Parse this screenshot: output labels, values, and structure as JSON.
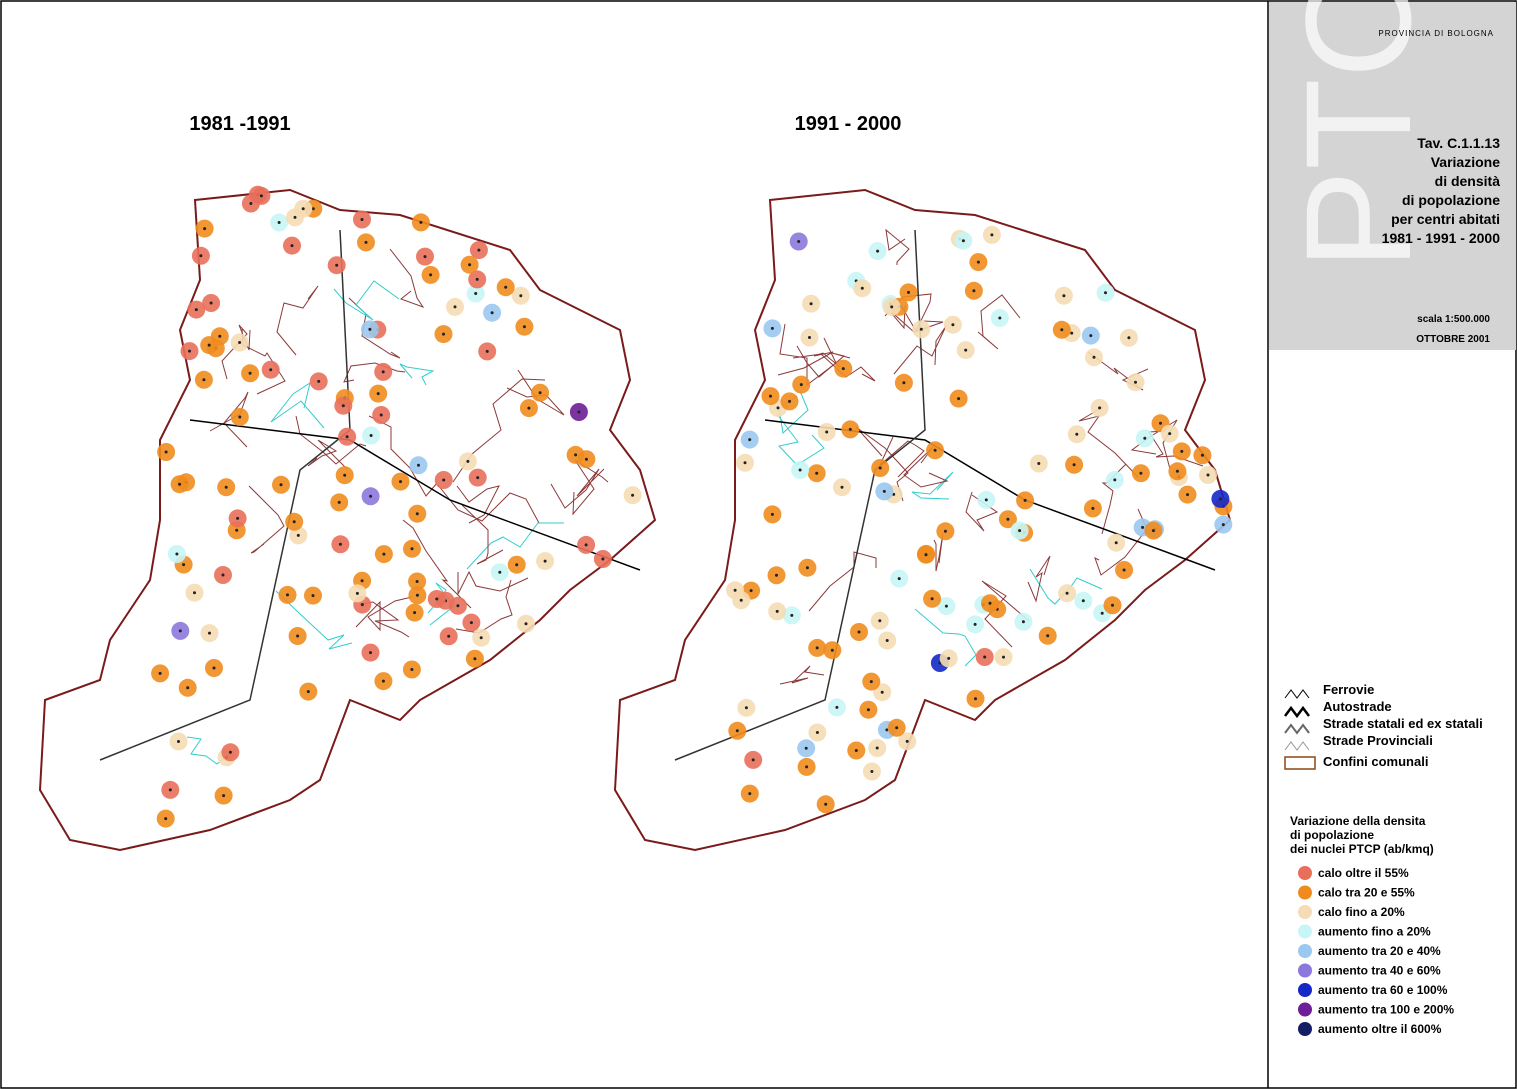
{
  "header": {
    "province": "PROVINCIA DI BOLOGNA",
    "table": "Tav. C.1.1.13",
    "title_lines": [
      "Variazione",
      "di densità",
      "di popolazione",
      "per centri abitati",
      "1981 - 1991 - 2000"
    ],
    "scale": "scala 1:500.000",
    "date": "OTTOBRE 2001"
  },
  "maps": [
    {
      "title": "1981 -1991"
    },
    {
      "title": "1991 - 2000"
    }
  ],
  "legend": {
    "lines": [
      "Ferrovie",
      "Autostrade",
      "Strade statali ed ex statali",
      "Strade Provinciali",
      "Confini comunali"
    ],
    "classes_title": [
      "Variazione della densita",
      "di popolazione",
      "dei nuclei PTCP  (ab/kmq)"
    ],
    "classes": [
      {
        "label": "calo oltre il 55%",
        "color": "#e8705a"
      },
      {
        "label": "calo tra 20 e 55%",
        "color": "#f08c1e"
      },
      {
        "label": "calo fino a 20%",
        "color": "#f5dcb4"
      },
      {
        "label": "aumento fino a 20%",
        "color": "#c8f5f5"
      },
      {
        "label": "aumento tra 20 e 40%",
        "color": "#9bc8f0"
      },
      {
        "label": "aumento tra 40 e 60%",
        "color": "#8c78dc"
      },
      {
        "label": "aumento tra 60 e 100%",
        "color": "#1428c8"
      },
      {
        "label": "aumento tra 100 e 200%",
        "color": "#6e1e96"
      },
      {
        "label": "aumento oltre il 600%",
        "color": "#141e64"
      }
    ]
  }
}
